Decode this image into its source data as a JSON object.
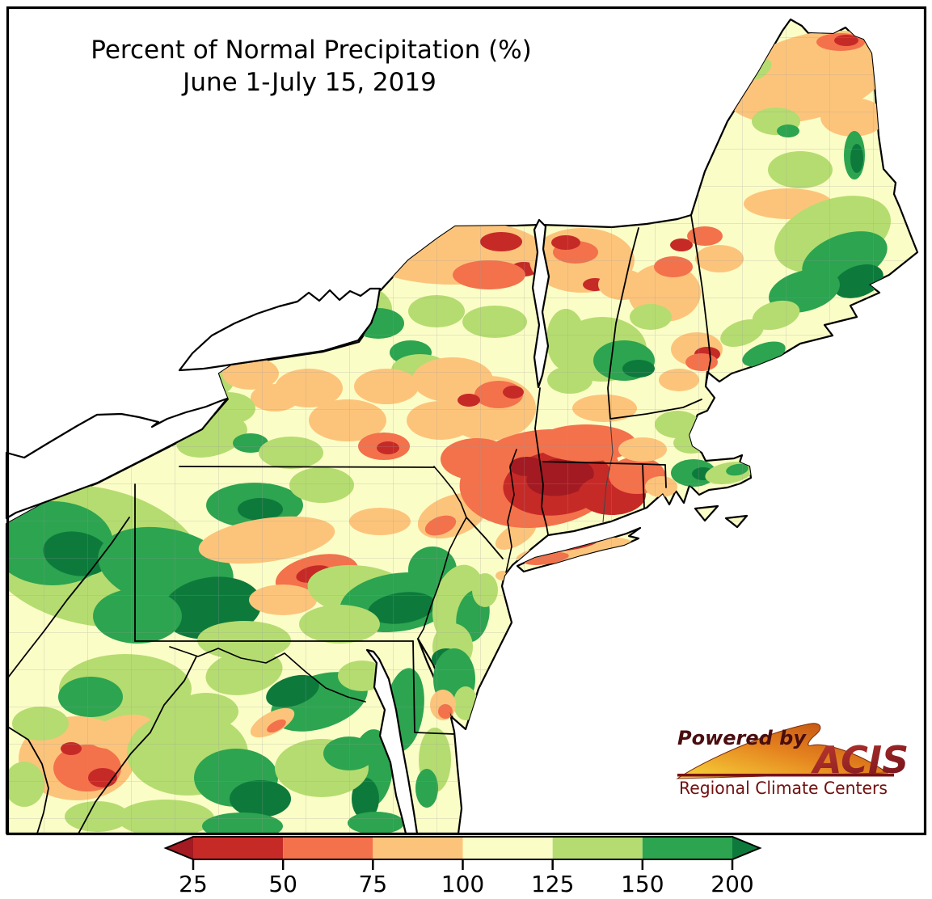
{
  "title": {
    "line1": "Percent of Normal Precipitation (%)",
    "line2": "June 1-July 15, 2019"
  },
  "legend": {
    "tick_labels": [
      "25",
      "50",
      "75",
      "100",
      "125",
      "150",
      "200"
    ],
    "stops": [
      {
        "key": "dr",
        "label": "<25",
        "color": "#a31a22"
      },
      {
        "key": "r",
        "label": "25-50",
        "color": "#c62a27"
      },
      {
        "key": "o",
        "label": "50-75",
        "color": "#f3714b"
      },
      {
        "key": "lo",
        "label": "75-100",
        "color": "#fcc47b"
      },
      {
        "key": "py",
        "label": "100-125",
        "color": "#fbfdc7"
      },
      {
        "key": "lg",
        "label": "125-150",
        "color": "#b5dc70"
      },
      {
        "key": "g",
        "label": "150-200",
        "color": "#2ca450"
      },
      {
        "key": "dg",
        "label": ">200",
        "color": "#0d7a3c"
      }
    ]
  },
  "logo": {
    "powered_by": "Powered by",
    "name": "ACIS",
    "subtitle": "Regional Climate Centers"
  },
  "chart_data": {
    "type": "heatmap",
    "subtype": "choropleth-precipitation-map",
    "title": "Percent of Normal Precipitation (%)",
    "period": "June 1-July 15, 2019",
    "region": "Northeastern United States (ME, NH, VT, MA, RI, CT, NY, NJ, PA, MD, DE, WV, VA, OH edge)",
    "units": "percent of normal precipitation",
    "legend_ticks": [
      25,
      50,
      75,
      100,
      125,
      150,
      200
    ],
    "scale_bins": [
      {
        "range": "<25",
        "color": "#a31a22"
      },
      {
        "range": "25-50",
        "color": "#c62a27"
      },
      {
        "range": "50-75",
        "color": "#f3714b"
      },
      {
        "range": "75-100",
        "color": "#fcc47b"
      },
      {
        "range": "100-125",
        "color": "#fbfdc7"
      },
      {
        "range": "125-150",
        "color": "#b5dc70"
      },
      {
        "range": "150-200",
        "color": "#2ca450"
      },
      {
        "range": ">200",
        "color": "#0d7a3c"
      }
    ],
    "observations": [
      {
        "area": "Hudson Valley / NW Connecticut / SW Massachusetts",
        "value": "25-50% of normal, local pockets <25% (driest core)"
      },
      {
        "area": "Eastern New York, Mohawk/Albany region",
        "value": "50-100% of normal with scattered 25-50% pockets"
      },
      {
        "area": "Northern Vermont, northern New Hampshire, northern Maine",
        "value": "75-100% of normal with 50-75% patches"
      },
      {
        "area": "Long Island",
        "value": "50-100% of normal"
      },
      {
        "area": "Western Pennsylvania / southwest New York / northern West Virginia",
        "value": "150-200% and locally >200% of normal"
      },
      {
        "area": "Downeast Maine",
        "value": "150-200% and locally >200% of normal"
      },
      {
        "area": "Southeast Massachusetts and Cape Cod",
        "value": "125-200% of normal"
      },
      {
        "area": "Virginia / Maryland / Delmarva",
        "value": "mostly 100-200% of normal; 50-75% pocket in southwest West Virginia"
      }
    ],
    "credit": "Powered by ACIS Regional Climate Centers"
  }
}
